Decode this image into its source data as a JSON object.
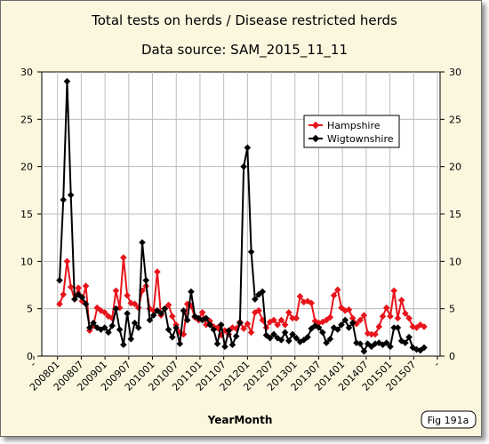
{
  "chart_data": {
    "type": "line",
    "title": "Total tests on herds / Disease restricted herds",
    "subtitle": "Data source: SAM_2015_11_11",
    "xlabel": "YearMonth",
    "ylabel": "",
    "ylim": [
      0,
      30
    ],
    "yticks": [
      0,
      5,
      10,
      15,
      20,
      25,
      30
    ],
    "grid": true,
    "legend_position": "top-right",
    "fig_label": "Fig 191a",
    "x_tick_labels": [
      "-",
      "200801",
      "200807",
      "200901",
      "200907",
      "201001",
      "201007",
      "201101",
      "201107",
      "201201",
      "201207",
      "201301",
      "201307",
      "201401",
      "201407",
      "201501",
      "201507",
      "-"
    ],
    "series": [
      {
        "name": "Hampshire",
        "color": "#e8141b",
        "values": [
          5.5,
          6.5,
          10,
          7.3,
          6,
          7.2,
          5.8,
          7.4,
          2.7,
          3.2,
          5.1,
          4.8,
          4.6,
          4.2,
          4,
          6.9,
          5.1,
          10.4,
          6.4,
          5.6,
          5.5,
          5.1,
          6.9,
          7.4,
          5,
          4.8,
          8.9,
          4.3,
          5,
          5.4,
          4.2,
          3.3,
          2.5,
          2.3,
          5.5,
          5.3,
          4.1,
          3.8,
          4.6,
          3.3,
          3.7,
          3.1,
          3,
          2.2,
          2.7,
          2.3,
          3,
          2.9,
          3.6,
          2.9,
          3.4,
          2.5,
          4.6,
          4.8,
          3.8,
          3,
          3.6,
          3.8,
          3.3,
          3.8,
          3.3,
          4.6,
          4,
          4,
          6.3,
          5.7,
          5.8,
          5.6,
          3.7,
          3.5,
          3.6,
          3.8,
          4.1,
          6.4,
          7,
          5.1,
          4.8,
          4.9,
          4,
          3.4,
          3.8,
          4.3,
          2.4,
          2.3,
          2.3,
          3.1,
          4.2,
          5.1,
          4.2,
          6.9,
          4,
          5.9,
          4.5,
          4,
          3.1,
          3,
          3.3,
          3.1
        ]
      },
      {
        "name": "Wigtownshire",
        "color": "#000000",
        "values": [
          8,
          16.5,
          29,
          17,
          6,
          6.5,
          6.2,
          5.5,
          3,
          3.5,
          3,
          2.8,
          3,
          2.5,
          3.2,
          5,
          2.8,
          1.2,
          4.5,
          1.8,
          3.5,
          3,
          12,
          8,
          3.8,
          4.3,
          4.8,
          4.5,
          5,
          2.8,
          2,
          3,
          1.3,
          4.8,
          3.8,
          6.8,
          4.2,
          4,
          3.8,
          4,
          3.3,
          2.8,
          1.3,
          3.3,
          1,
          2.7,
          1.2,
          2.1,
          3.5,
          20,
          22,
          11,
          6,
          6.5,
          6.8,
          2.2,
          1.9,
          2.3,
          1.9,
          1.7,
          2.5,
          1.6,
          2.3,
          1.9,
          1.5,
          1.7,
          2,
          2.9,
          3.2,
          3,
          2.5,
          1.4,
          1.8,
          3,
          2.8,
          3.3,
          3.8,
          3,
          3.5,
          1.4,
          1.3,
          0.5,
          1.3,
          1,
          1.3,
          1.4,
          1.2,
          1.4,
          1,
          3,
          3,
          1.6,
          1.4,
          2,
          0.9,
          0.7,
          0.6,
          0.9
        ]
      }
    ]
  }
}
